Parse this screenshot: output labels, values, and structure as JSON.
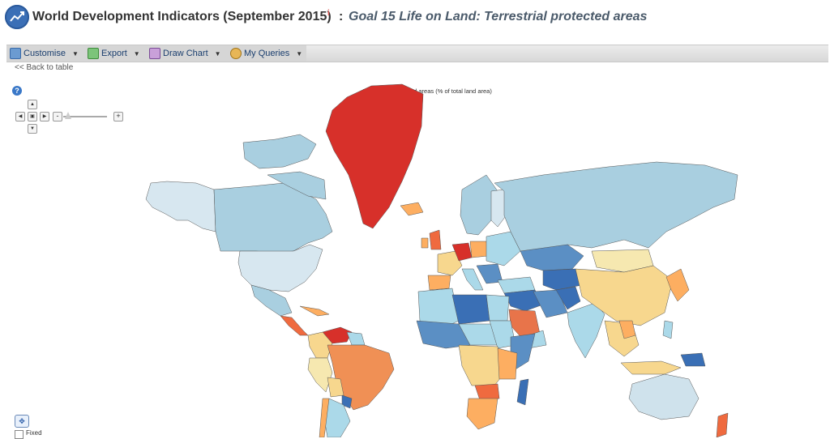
{
  "header": {
    "app_title": "World Development Indicators (September 2015)",
    "info_icon": "i",
    "separator": ":",
    "subtitle": "Goal 15 Life on Land: Terrestrial protected areas"
  },
  "toolbar": {
    "items": [
      {
        "label": "Customise",
        "icon": "customise-icon"
      },
      {
        "label": "Export",
        "icon": "export-icon"
      },
      {
        "label": "Draw Chart",
        "icon": "chart-icon"
      },
      {
        "label": "My Queries",
        "icon": "user-icon"
      }
    ]
  },
  "back_link": "<< Back to table",
  "map": {
    "title": "Terrestrial protected areas (% of total land area)",
    "color_scale": [
      "#2c7bb6",
      "#abd9e9",
      "#ffffbf",
      "#fdae61",
      "#d7191c"
    ],
    "regions": [
      {
        "name": "Greenland",
        "class": "very-high",
        "color": "#d7302a"
      },
      {
        "name": "Venezuela",
        "class": "very-high",
        "color": "#d7302a"
      },
      {
        "name": "Germany",
        "class": "very-high",
        "color": "#d7302a"
      },
      {
        "name": "New Zealand",
        "class": "high",
        "color": "#ef6a3f"
      },
      {
        "name": "Brazil",
        "class": "high",
        "color": "#f09055"
      },
      {
        "name": "Saudi Arabia",
        "class": "high",
        "color": "#e8744a"
      },
      {
        "name": "China",
        "class": "mid",
        "color": "#f7d78e"
      },
      {
        "name": "Mongolia",
        "class": "mid-low",
        "color": "#f6e8b0"
      },
      {
        "name": "Canada",
        "class": "low",
        "color": "#a9cfe0"
      },
      {
        "name": "Russia",
        "class": "low",
        "color": "#a9cfe0"
      },
      {
        "name": "United States",
        "class": "low",
        "color": "#d7e7f0"
      },
      {
        "name": "Australia",
        "class": "low",
        "color": "#cfe2ec"
      },
      {
        "name": "Libya",
        "class": "very-low",
        "color": "#3a6fb5"
      },
      {
        "name": "Kazakhstan",
        "class": "very-low",
        "color": "#5b8fc4"
      }
    ]
  },
  "controls": {
    "help": "?",
    "zoom_in": "+",
    "zoom_out": "-",
    "fixed_label": "Fixed"
  }
}
